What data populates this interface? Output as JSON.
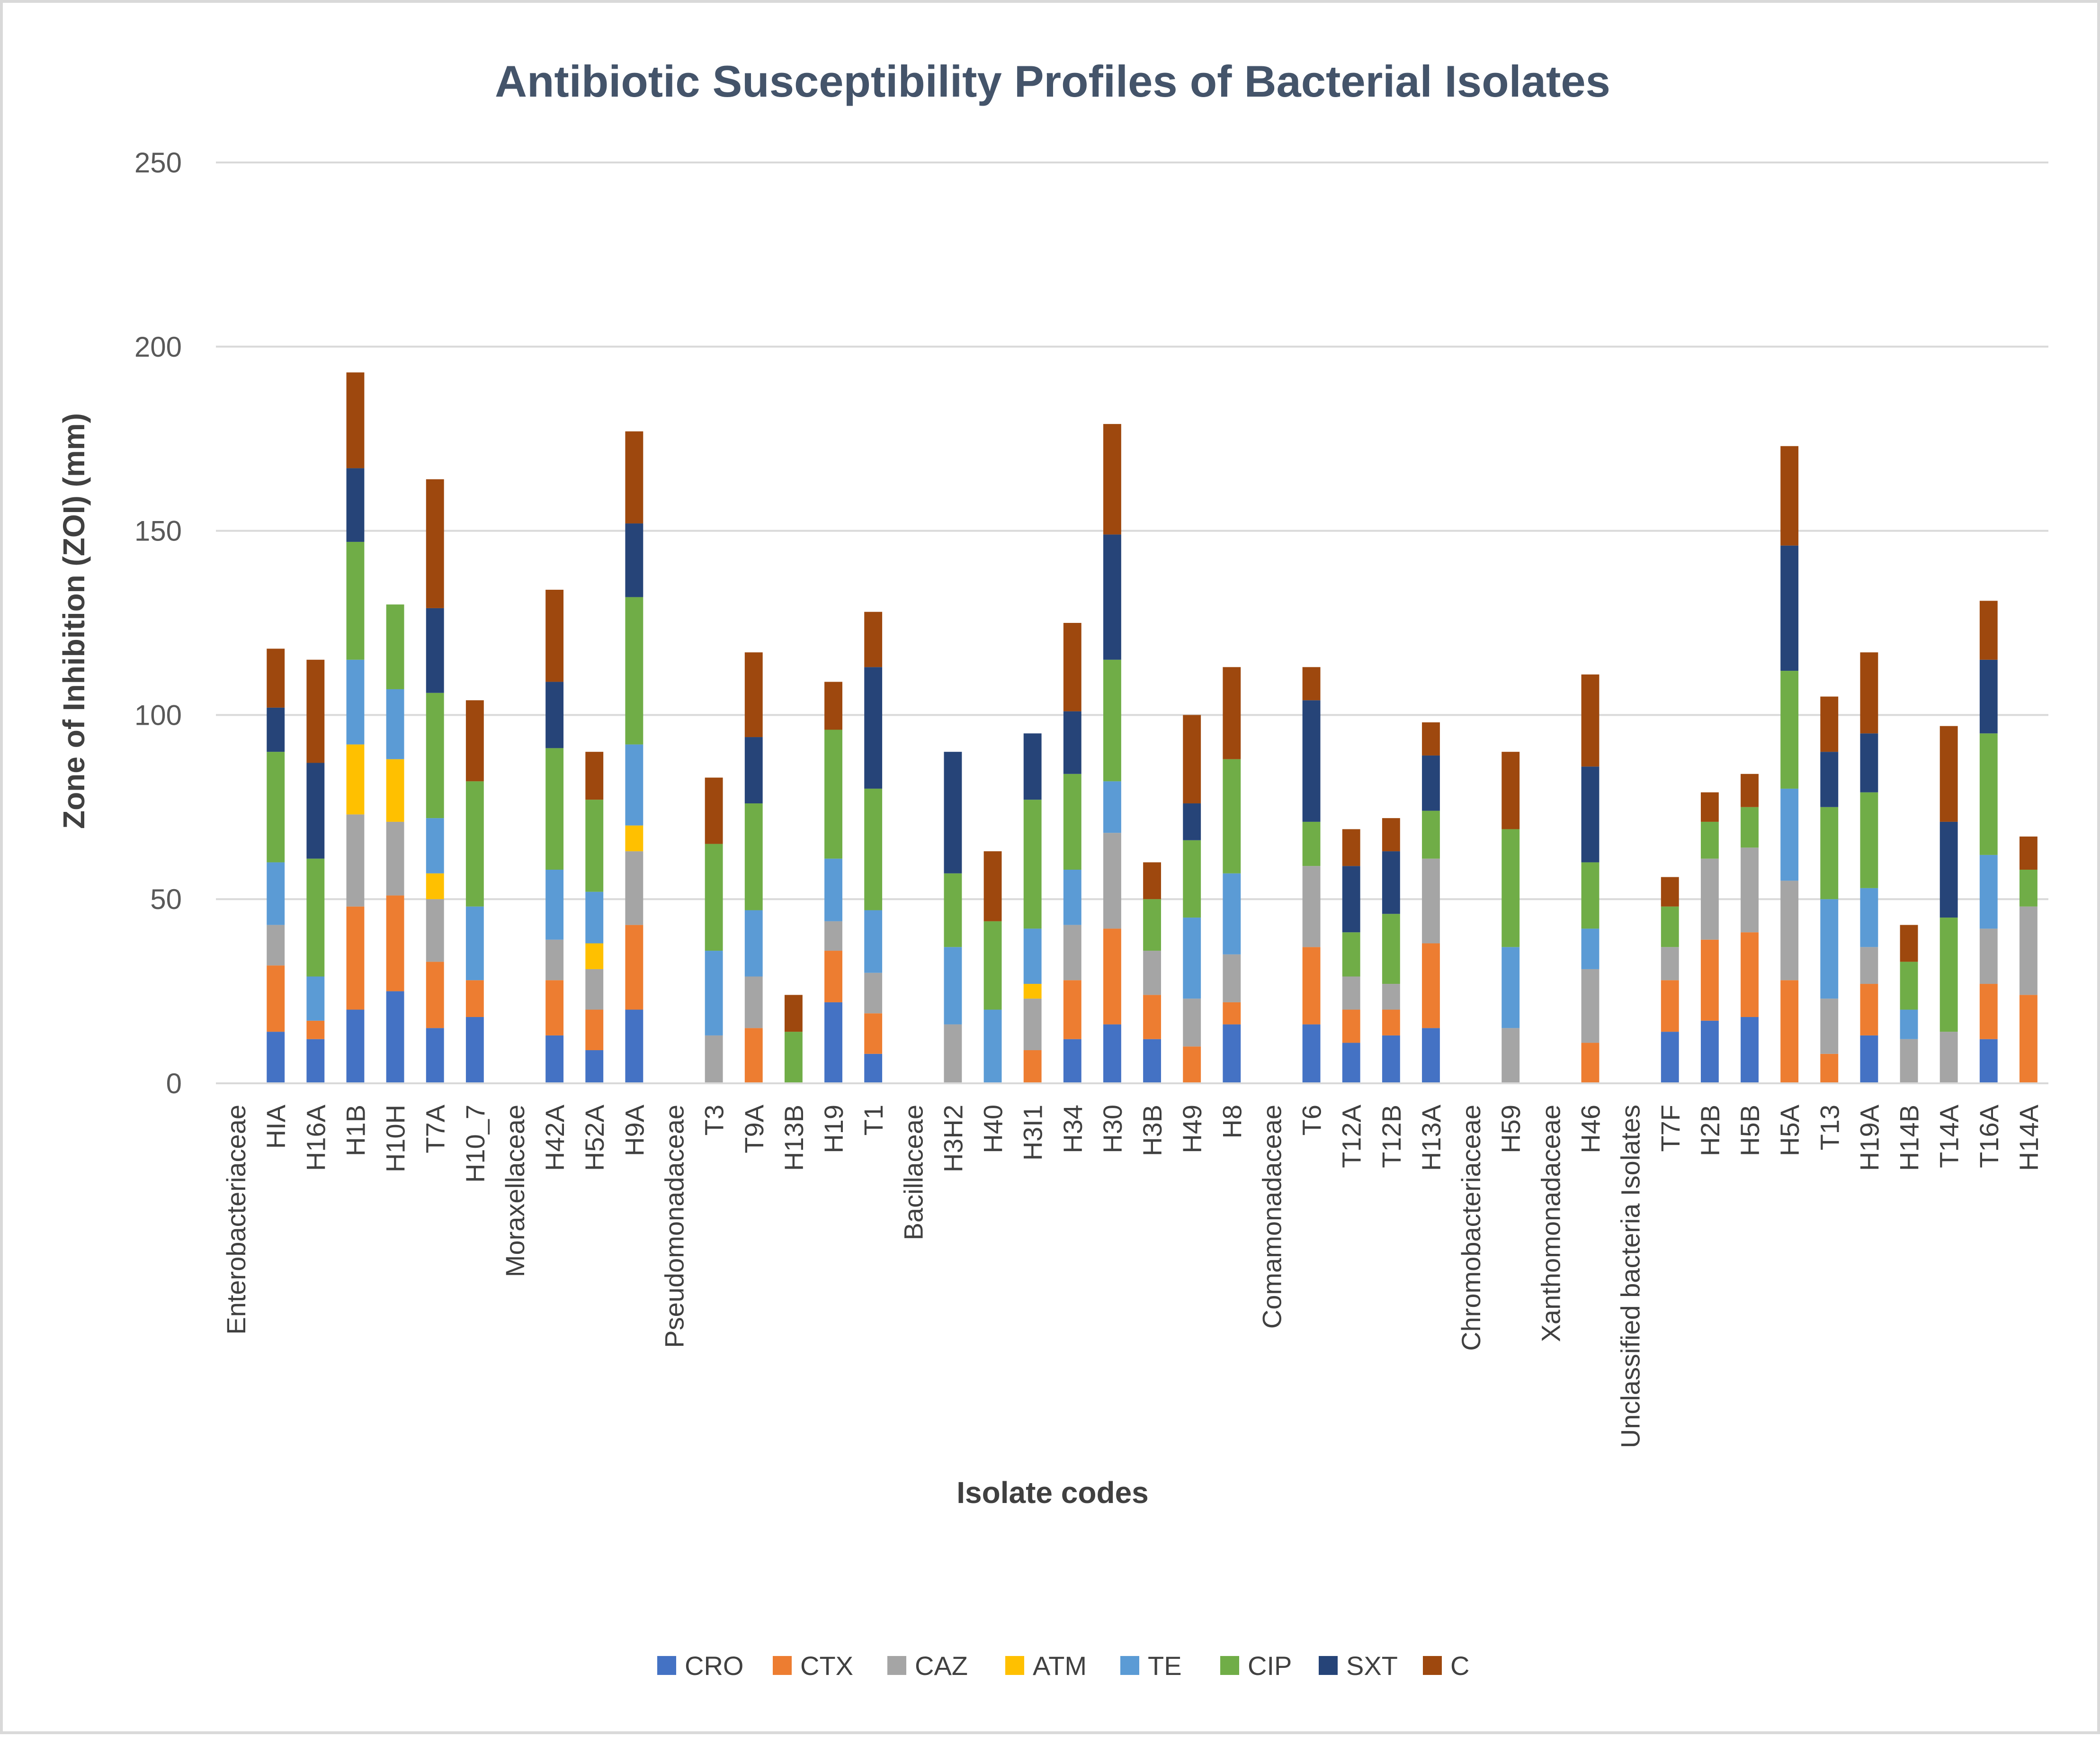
{
  "chart_data": {
    "type": "bar",
    "stacked": true,
    "title": "Antibiotic Susceptibility Profiles of Bacterial Isolates",
    "xlabel": "Isolate codes",
    "ylabel": "Zone of Inhibition (ZOI) (mm)",
    "ylim": [
      0,
      250
    ],
    "yticks": [
      0,
      50,
      100,
      150,
      200,
      250
    ],
    "grid": true,
    "legend_position": "bottom",
    "categories": [
      "Enterobacteriaceae",
      "HIA",
      "H16A",
      "H1B",
      "H10H",
      "T7A",
      "H10_7",
      "Moraxellaceae",
      "H42A",
      "H52A",
      "H9A",
      "Pseudomonadaceae",
      "T3",
      "T9A",
      "H13B",
      "H19",
      "T1",
      "Bacillaceae",
      "H3H2",
      "H40",
      "H3I1",
      "H34",
      "H30",
      "H3B",
      "H49",
      "H8",
      "Comamonadaceae",
      "T6",
      "T12A",
      "T12B",
      "H13A",
      "Chromobacteriaceae",
      "H59",
      "Xanthomonadaceae",
      "H46",
      "Unclassified bacteria Isolates",
      "T7F",
      "H2B",
      "H5B",
      "H5A",
      "T13",
      "H19A",
      "H14B",
      "T14A",
      "T16A",
      "H14A"
    ],
    "series": [
      {
        "name": "CRO",
        "color": "#4472c4",
        "values": [
          0,
          14,
          12,
          20,
          25,
          15,
          18,
          0,
          13,
          9,
          20,
          0,
          0,
          0,
          0,
          22,
          8,
          0,
          0,
          0,
          0,
          12,
          16,
          12,
          0,
          16,
          0,
          16,
          11,
          13,
          15,
          0,
          0,
          0,
          0,
          0,
          14,
          17,
          18,
          0,
          0,
          13,
          0,
          0,
          12,
          0
        ]
      },
      {
        "name": "CTX",
        "color": "#ed7d31",
        "values": [
          0,
          18,
          5,
          28,
          26,
          18,
          10,
          0,
          15,
          11,
          23,
          0,
          0,
          15,
          0,
          14,
          11,
          0,
          0,
          0,
          9,
          16,
          26,
          12,
          10,
          6,
          0,
          21,
          9,
          7,
          23,
          0,
          0,
          0,
          11,
          0,
          14,
          22,
          23,
          28,
          8,
          14,
          0,
          0,
          15,
          24
        ]
      },
      {
        "name": "CAZ",
        "color": "#a5a5a5",
        "values": [
          0,
          11,
          0,
          25,
          20,
          17,
          0,
          0,
          11,
          11,
          20,
          0,
          13,
          14,
          0,
          8,
          11,
          0,
          16,
          0,
          14,
          15,
          26,
          12,
          13,
          13,
          0,
          22,
          9,
          7,
          23,
          0,
          15,
          0,
          20,
          0,
          9,
          22,
          23,
          27,
          15,
          10,
          12,
          14,
          15,
          24
        ]
      },
      {
        "name": "ATM",
        "color": "#ffc000",
        "values": [
          0,
          0,
          0,
          19,
          17,
          7,
          0,
          0,
          0,
          7,
          7,
          0,
          0,
          0,
          0,
          0,
          0,
          0,
          0,
          0,
          4,
          0,
          0,
          0,
          0,
          0,
          0,
          0,
          0,
          0,
          0,
          0,
          0,
          0,
          0,
          0,
          0,
          0,
          0,
          0,
          0,
          0,
          0,
          0,
          0,
          0
        ]
      },
      {
        "name": "TE",
        "color": "#5b9bd5",
        "values": [
          0,
          17,
          12,
          23,
          19,
          15,
          20,
          0,
          19,
          14,
          22,
          0,
          23,
          18,
          0,
          17,
          17,
          0,
          21,
          20,
          15,
          15,
          14,
          0,
          22,
          22,
          0,
          0,
          0,
          0,
          0,
          0,
          22,
          0,
          11,
          0,
          0,
          0,
          0,
          25,
          27,
          16,
          8,
          0,
          20,
          0
        ]
      },
      {
        "name": "CIP",
        "color": "#70ad47",
        "values": [
          0,
          30,
          32,
          32,
          23,
          34,
          34,
          0,
          33,
          25,
          40,
          0,
          29,
          29,
          14,
          35,
          33,
          0,
          20,
          24,
          35,
          26,
          33,
          14,
          21,
          31,
          0,
          12,
          12,
          19,
          13,
          0,
          32,
          0,
          18,
          0,
          11,
          10,
          11,
          32,
          25,
          26,
          13,
          31,
          33,
          10
        ]
      },
      {
        "name": "SXT",
        "color": "#264478",
        "values": [
          0,
          12,
          26,
          20,
          0,
          23,
          0,
          0,
          18,
          0,
          20,
          0,
          0,
          18,
          0,
          0,
          33,
          0,
          33,
          0,
          18,
          17,
          34,
          0,
          10,
          0,
          0,
          33,
          18,
          17,
          15,
          0,
          0,
          0,
          26,
          0,
          0,
          0,
          0,
          34,
          15,
          16,
          0,
          26,
          20,
          0
        ]
      },
      {
        "name": "C",
        "color": "#9e480e",
        "values": [
          0,
          16,
          28,
          26,
          0,
          35,
          22,
          0,
          25,
          13,
          25,
          0,
          18,
          23,
          10,
          13,
          15,
          0,
          0,
          19,
          0,
          24,
          30,
          10,
          24,
          25,
          0,
          9,
          10,
          9,
          9,
          0,
          21,
          0,
          25,
          0,
          8,
          8,
          9,
          27,
          15,
          22,
          10,
          26,
          16,
          9
        ]
      }
    ]
  }
}
